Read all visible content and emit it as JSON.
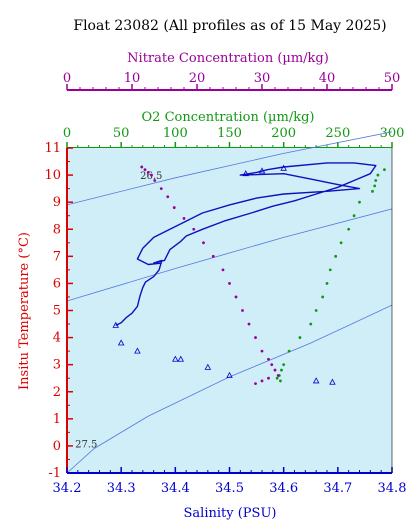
{
  "title": "Float 23082  (All profiles as of 15 May 2025)",
  "colors": {
    "nitrate": "#990099",
    "oxygen": "#119911",
    "temperature": "#dd0000",
    "salinity": "#0000cc",
    "plot_bg": "#d0eef8",
    "profile_line": "#1010c0",
    "density_line": "#5577dd"
  },
  "chart_data": {
    "type": "scatter",
    "title": "Float 23082  (All profiles as of 15 May 2025)",
    "axes": {
      "salinity": {
        "label": "Salinity (PSU)",
        "position": "bottom",
        "range": [
          34.2,
          34.8
        ],
        "ticks": [
          "34.2",
          "34.3",
          "34.4",
          "34.5",
          "34.6",
          "34.7",
          "34.8"
        ]
      },
      "temperature": {
        "label": "Insitu Temperature (°C)",
        "position": "left",
        "range": [
          -1,
          11
        ],
        "ticks": [
          "-1",
          "0",
          "1",
          "2",
          "3",
          "4",
          "5",
          "6",
          "7",
          "8",
          "9",
          "10",
          "11"
        ]
      },
      "oxygen": {
        "label": "O2 Concentration (µm/kg)",
        "position": "top",
        "range": [
          0,
          300
        ],
        "ticks": [
          "0",
          "50",
          "100",
          "150",
          "200",
          "250",
          "300"
        ]
      },
      "nitrate": {
        "label": "Nitrate Concentration (µm/kg)",
        "position": "top",
        "range": [
          0,
          50
        ],
        "ticks": [
          "0",
          "10",
          "20",
          "30",
          "40",
          "50"
        ]
      }
    },
    "grid": false,
    "density_contours": [
      {
        "label": "26.5",
        "points": [
          [
            34.2,
            8.9
          ],
          [
            34.4,
            9.9
          ],
          [
            34.6,
            10.8
          ],
          [
            34.8,
            11.6
          ]
        ]
      },
      {
        "label": "",
        "points": [
          [
            34.2,
            5.35
          ],
          [
            34.4,
            6.55
          ],
          [
            34.6,
            7.7
          ],
          [
            34.8,
            8.75
          ]
        ]
      },
      {
        "label": "27.5",
        "points": [
          [
            34.2,
            -1.0
          ],
          [
            34.25,
            -0.1
          ],
          [
            34.35,
            1.1
          ],
          [
            34.5,
            2.55
          ],
          [
            34.65,
            3.8
          ],
          [
            34.8,
            5.2
          ]
        ]
      }
    ],
    "series": [
      {
        "kind": "ts_profile",
        "axis_x": "salinity",
        "points": [
          [
            34.29,
            4.45
          ],
          [
            34.3,
            4.55
          ],
          [
            34.31,
            4.75
          ],
          [
            34.32,
            4.9
          ],
          [
            34.33,
            5.15
          ],
          [
            34.335,
            5.55
          ],
          [
            34.34,
            5.85
          ],
          [
            34.345,
            6.05
          ],
          [
            34.36,
            6.25
          ],
          [
            34.37,
            6.5
          ],
          [
            34.375,
            6.85
          ],
          [
            34.36,
            6.75
          ],
          [
            34.38,
            6.85
          ],
          [
            34.39,
            7.25
          ],
          [
            34.41,
            7.55
          ],
          [
            34.42,
            7.75
          ],
          [
            34.45,
            8.0
          ],
          [
            34.49,
            8.3
          ],
          [
            34.54,
            8.6
          ],
          [
            34.58,
            8.85
          ],
          [
            34.62,
            9.05
          ],
          [
            34.66,
            9.3
          ],
          [
            34.7,
            9.55
          ],
          [
            34.73,
            9.8
          ],
          [
            34.76,
            10.05
          ],
          [
            34.77,
            10.35
          ],
          [
            34.73,
            10.45
          ],
          [
            34.68,
            10.45
          ],
          [
            34.6,
            10.3
          ],
          [
            34.57,
            10.2
          ],
          [
            34.55,
            10.1
          ],
          [
            34.52,
            10.0
          ],
          [
            34.6,
            10.05
          ],
          [
            34.65,
            9.85
          ],
          [
            34.7,
            9.65
          ],
          [
            34.74,
            9.5
          ],
          [
            34.68,
            9.4
          ],
          [
            34.6,
            9.3
          ],
          [
            34.55,
            9.15
          ],
          [
            34.5,
            8.9
          ],
          [
            34.45,
            8.6
          ],
          [
            34.42,
            8.3
          ],
          [
            34.39,
            8.0
          ],
          [
            34.36,
            7.7
          ],
          [
            34.34,
            7.3
          ],
          [
            34.33,
            6.9
          ],
          [
            34.35,
            6.7
          ],
          [
            34.375,
            6.75
          ]
        ]
      },
      {
        "kind": "ts_bottle",
        "axis_x": "salinity",
        "points": [
          [
            34.29,
            4.45
          ],
          [
            34.3,
            3.8
          ],
          [
            34.33,
            3.5
          ],
          [
            34.4,
            3.2
          ],
          [
            34.41,
            3.2
          ],
          [
            34.46,
            2.9
          ],
          [
            34.5,
            2.6
          ],
          [
            34.66,
            2.4
          ],
          [
            34.69,
            2.35
          ],
          [
            34.53,
            10.05
          ],
          [
            34.56,
            10.15
          ],
          [
            34.6,
            10.25
          ]
        ]
      },
      {
        "kind": "oxygen",
        "axis_x": "oxygen",
        "points": [
          [
            293,
            10.2
          ],
          [
            287,
            10.0
          ],
          [
            285,
            9.8
          ],
          [
            284,
            9.6
          ],
          [
            282,
            9.4
          ],
          [
            270,
            9.0
          ],
          [
            265,
            8.5
          ],
          [
            260,
            8.0
          ],
          [
            253,
            7.5
          ],
          [
            248,
            7.0
          ],
          [
            243,
            6.5
          ],
          [
            240,
            6.0
          ],
          [
            236,
            5.5
          ],
          [
            230,
            5.0
          ],
          [
            225,
            4.5
          ],
          [
            215,
            4.0
          ],
          [
            205,
            3.5
          ],
          [
            200,
            3.0
          ],
          [
            198,
            2.8
          ],
          [
            196,
            2.6
          ],
          [
            194,
            2.5
          ],
          [
            197,
            2.4
          ]
        ]
      },
      {
        "kind": "nitrate",
        "axis_x": "nitrate",
        "points": [
          [
            11.5,
            10.3
          ],
          [
            12.0,
            10.2
          ],
          [
            12.5,
            10.1
          ],
          [
            13.0,
            10.0
          ],
          [
            13.5,
            9.8
          ],
          [
            14.5,
            9.5
          ],
          [
            15.5,
            9.2
          ],
          [
            16.5,
            8.8
          ],
          [
            18.0,
            8.4
          ],
          [
            19.5,
            8.0
          ],
          [
            21.0,
            7.5
          ],
          [
            22.5,
            7.0
          ],
          [
            24.0,
            6.5
          ],
          [
            25.0,
            6.0
          ],
          [
            26.0,
            5.5
          ],
          [
            27.0,
            5.0
          ],
          [
            28.0,
            4.5
          ],
          [
            29.0,
            4.0
          ],
          [
            30.0,
            3.5
          ],
          [
            31.0,
            3.2
          ],
          [
            31.5,
            3.0
          ],
          [
            32.0,
            2.8
          ],
          [
            32.5,
            2.6
          ],
          [
            31.0,
            2.5
          ],
          [
            30.0,
            2.4
          ],
          [
            29.0,
            2.3
          ]
        ]
      }
    ]
  }
}
